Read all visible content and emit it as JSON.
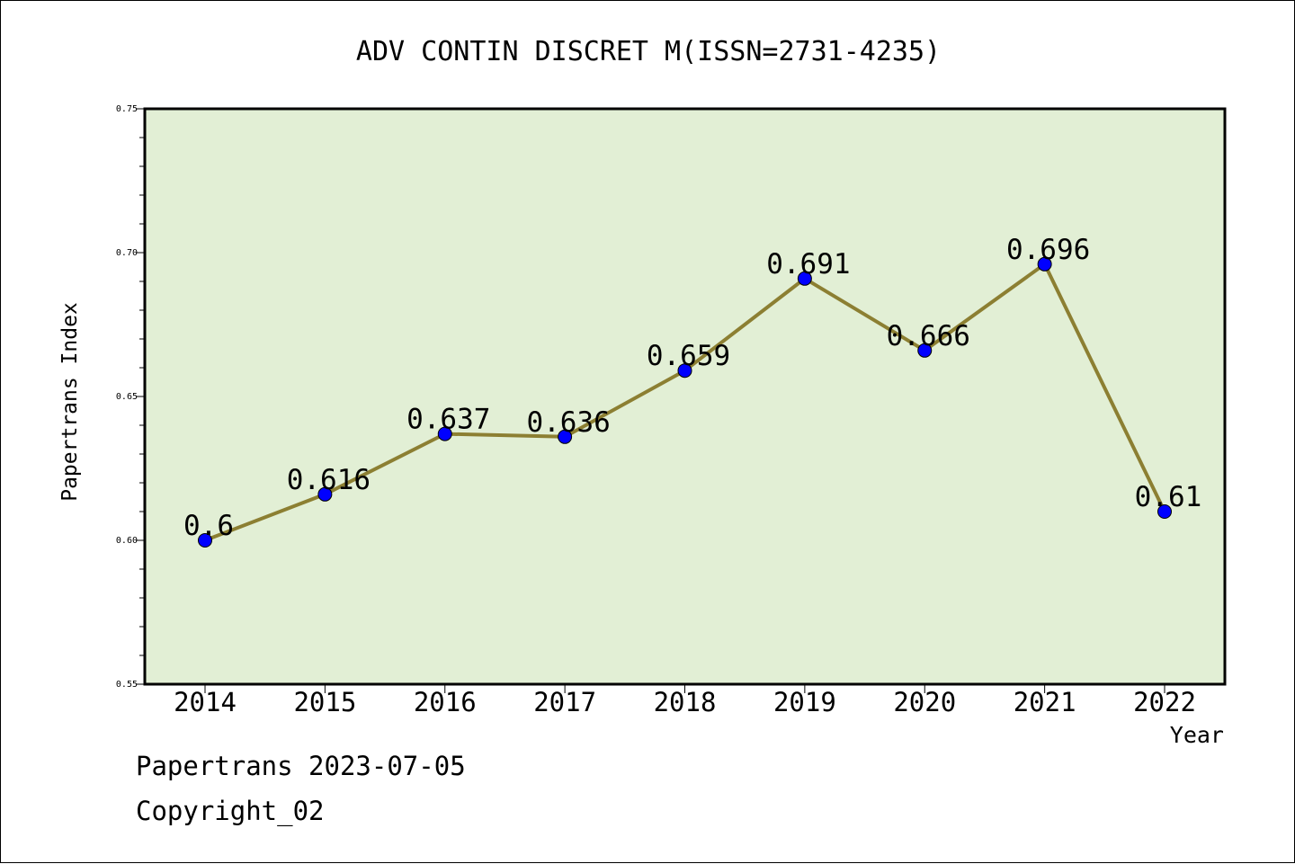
{
  "chart_data": {
    "type": "line",
    "title": "ADV CONTIN DISCRET M(ISSN=2731-4235)",
    "xlabel": "Year",
    "ylabel": "Papertrans Index",
    "categories": [
      "2014",
      "2015",
      "2016",
      "2017",
      "2018",
      "2019",
      "2020",
      "2021",
      "2022"
    ],
    "series": [
      {
        "values": [
          0.6,
          0.616,
          0.637,
          0.636,
          0.659,
          0.691,
          0.666,
          0.696,
          0.61
        ],
        "data_labels": [
          "0.6",
          "0.616",
          "0.637",
          "0.636",
          "0.659",
          "0.691",
          "0.666",
          "0.696",
          "0.61"
        ]
      }
    ],
    "ylim": [
      0.55,
      0.75
    ],
    "y_ticks": [
      "0.55",
      "0.60",
      "0.65",
      "0.70",
      "0.75"
    ],
    "grid": false,
    "colors": {
      "plot_background": "#e2efd5",
      "line": "#8c7f32",
      "marker": "#0000ff"
    }
  },
  "footer": {
    "line1": "Papertrans 2023-07-05",
    "line2": "Copyright_02"
  }
}
